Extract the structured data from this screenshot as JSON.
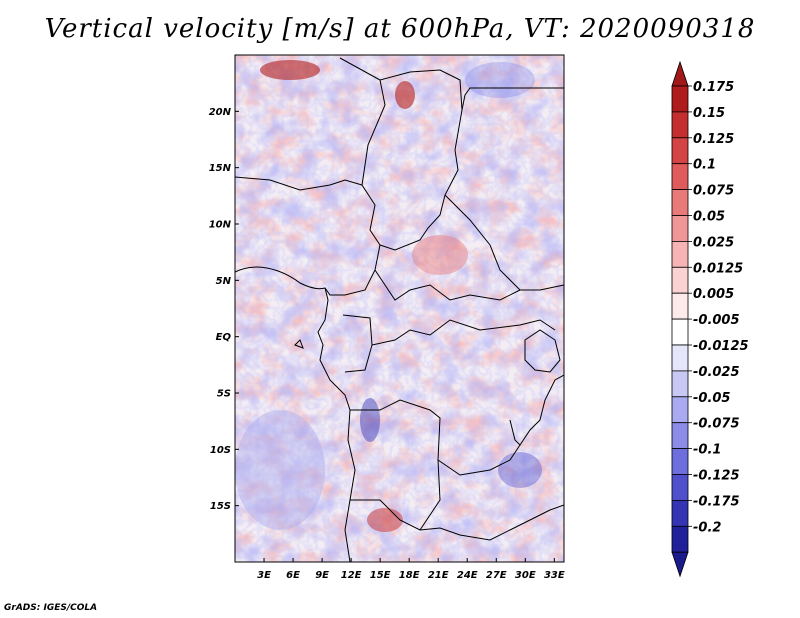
{
  "title": "Vertical velocity [m/s] at 600hPa, VT: 2020090318",
  "credit": "GrADS: IGES/COLA",
  "map": {
    "lon_range": [
      0,
      34
    ],
    "lat_range": [
      -20,
      25
    ],
    "lat_ticks": [
      {
        "value": 20,
        "label": "20N"
      },
      {
        "value": 15,
        "label": "15N"
      },
      {
        "value": 10,
        "label": "10N"
      },
      {
        "value": 5,
        "label": "5N"
      },
      {
        "value": 0,
        "label": "EQ"
      },
      {
        "value": -5,
        "label": "5S"
      },
      {
        "value": -10,
        "label": "10S"
      },
      {
        "value": -15,
        "label": "15S"
      }
    ],
    "lon_ticks": [
      {
        "value": 3,
        "label": "3E"
      },
      {
        "value": 6,
        "label": "6E"
      },
      {
        "value": 9,
        "label": "9E"
      },
      {
        "value": 12,
        "label": "12E"
      },
      {
        "value": 15,
        "label": "15E"
      },
      {
        "value": 18,
        "label": "18E"
      },
      {
        "value": 21,
        "label": "21E"
      },
      {
        "value": 24,
        "label": "24E"
      },
      {
        "value": 27,
        "label": "27E"
      },
      {
        "value": 30,
        "label": "30E"
      },
      {
        "value": 33,
        "label": "33E"
      }
    ]
  },
  "colorbar": {
    "levels": [
      {
        "label": "0.175",
        "color": "#b01c1c"
      },
      {
        "label": "0.15",
        "color": "#c42e2e"
      },
      {
        "label": "0.125",
        "color": "#d44444"
      },
      {
        "label": "0.1",
        "color": "#e05c5c"
      },
      {
        "label": "0.075",
        "color": "#e87a7a"
      },
      {
        "label": "0.05",
        "color": "#f09696"
      },
      {
        "label": "0.025",
        "color": "#f6b4b4"
      },
      {
        "label": "0.0125",
        "color": "#fad2d2"
      },
      {
        "label": "0.005",
        "color": "#fdebeb"
      },
      {
        "label": "-0.005",
        "color": "#ffffff"
      },
      {
        "label": "-0.0125",
        "color": "#e6e6fa"
      },
      {
        "label": "-0.025",
        "color": "#c8c8f5"
      },
      {
        "label": "-0.05",
        "color": "#aaaaf0"
      },
      {
        "label": "-0.075",
        "color": "#8c8ce8"
      },
      {
        "label": "-0.1",
        "color": "#6e6edc"
      },
      {
        "label": "-0.125",
        "color": "#5050cc"
      },
      {
        "label": "-0.175",
        "color": "#3434b4"
      },
      {
        "label": "-0.2",
        "color": "#20209a"
      }
    ],
    "top_color": "#a01818",
    "bottom_color": "#1a1a8c"
  }
}
